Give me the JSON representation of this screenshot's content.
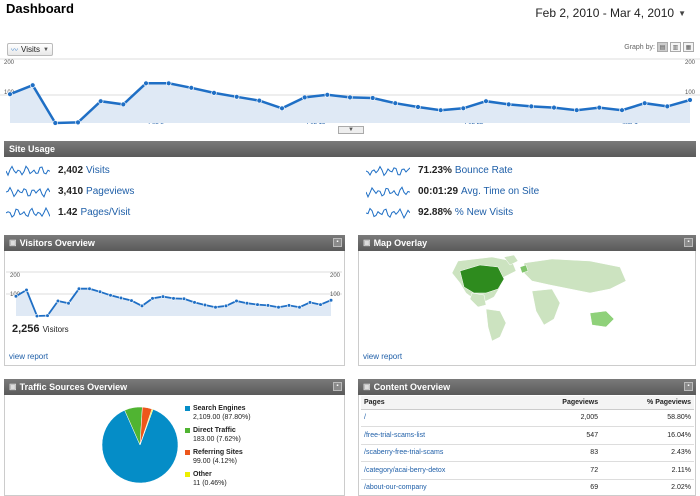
{
  "header": {
    "title": "Dashboard",
    "date_range": "Feb 2, 2010 - Mar 4, 2010"
  },
  "graph_controls": {
    "metric": "Visits",
    "graph_by_label": "Graph by:"
  },
  "main_chart": {
    "y_labels": [
      "200",
      "100"
    ],
    "y_right_label": "100",
    "y_right_top": "200",
    "x_labels": [
      "Feb 8",
      "Feb 15",
      "Feb 22",
      "Mar 1"
    ]
  },
  "chart_data": [
    {
      "type": "area",
      "title": "",
      "series": [
        {
          "name": "Visits",
          "values": [
            90,
            118,
            0,
            2,
            68,
            58,
            124,
            124,
            110,
            94,
            82,
            70,
            46,
            80,
            88,
            80,
            78,
            62,
            50,
            40,
            46,
            68,
            58,
            52,
            48,
            40,
            48,
            40,
            62,
            52,
            72
          ]
        }
      ],
      "x_ticks": [
        "Feb 8",
        "Feb 15",
        "Feb 22",
        "Mar 1"
      ],
      "ylim": [
        0,
        200
      ],
      "yticks": [
        "200",
        "100"
      ]
    },
    {
      "type": "area",
      "title": "Visitors Overview",
      "series": [
        {
          "name": "Visitors",
          "values": [
            90,
            118,
            0,
            2,
            68,
            58,
            124,
            124,
            110,
            94,
            82,
            70,
            46,
            80,
            88,
            80,
            78,
            62,
            50,
            40,
            46,
            68,
            58,
            52,
            48,
            40,
            48,
            40,
            62,
            52,
            72
          ]
        }
      ],
      "ylim": [
        0,
        200
      ],
      "yticks": [
        "200",
        "100"
      ]
    },
    {
      "type": "pie",
      "title": "Traffic Sources Overview",
      "slices": [
        {
          "name": "Search Engines",
          "value": 2109.0,
          "percent": 87.8,
          "color": "#058dc7"
        },
        {
          "name": "Direct Traffic",
          "value": 183.0,
          "percent": 7.62,
          "color": "#50b432"
        },
        {
          "name": "Referring Sites",
          "value": 99.0,
          "percent": 4.12,
          "color": "#ed561b"
        },
        {
          "name": "Other",
          "value": 11,
          "percent": 0.46,
          "color": "#edef00"
        }
      ]
    }
  ],
  "site_usage": {
    "title": "Site Usage",
    "left": [
      {
        "value": "2,402",
        "label": "Visits"
      },
      {
        "value": "3,410",
        "label": "Pageviews"
      },
      {
        "value": "1.42",
        "label": "Pages/Visit"
      }
    ],
    "right": [
      {
        "value": "71.23%",
        "label": "Bounce Rate"
      },
      {
        "value": "00:01:29",
        "label": "Avg. Time on Site"
      },
      {
        "value": "92.88%",
        "label": "% New Visits"
      }
    ]
  },
  "visitors_overview": {
    "title": "Visitors Overview",
    "y_top": "200",
    "y_mid": "100",
    "y_right_top": "200",
    "y_right_mid": "100",
    "count": "2,256",
    "count_label": "Visitors",
    "view_report": "view report"
  },
  "map_overlay": {
    "title": "Map Overlay",
    "view_report": "view report"
  },
  "traffic_sources": {
    "title": "Traffic Sources Overview",
    "legend": [
      {
        "name": "Search Engines",
        "detail": "2,109.00 (87.80%)"
      },
      {
        "name": "Direct Traffic",
        "detail": "183.00 (7.62%)"
      },
      {
        "name": "Referring Sites",
        "detail": "99.00 (4.12%)"
      },
      {
        "name": "Other",
        "detail": "11 (0.46%)"
      }
    ]
  },
  "content_overview": {
    "title": "Content Overview",
    "columns": [
      "Pages",
      "Pageviews",
      "% Pageviews"
    ],
    "rows": [
      [
        "/",
        "2,005",
        "58.80%"
      ],
      [
        "/free-trial-scams-list",
        "547",
        "16.04%"
      ],
      [
        "/scaberry-free-trial-scams",
        "83",
        "2.43%"
      ],
      [
        "/category/acai-berry-detox",
        "72",
        "2.11%"
      ],
      [
        "/about-our-company",
        "69",
        "2.02%"
      ]
    ]
  },
  "colors": {
    "line": "#1f6fc5",
    "fill": "#dfe9f5",
    "bar": "#6a6a6a",
    "link": "#1f5fa8",
    "map_green_dark": "#2e8b1e",
    "map_green_light": "#cce3c0"
  }
}
